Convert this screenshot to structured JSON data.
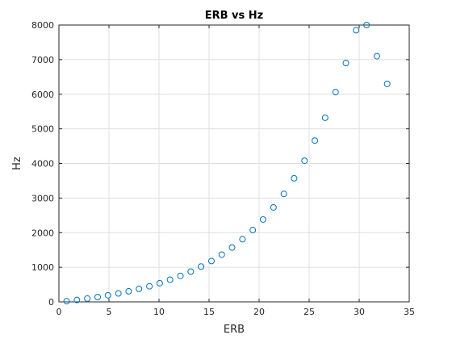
{
  "chart_data": {
    "type": "scatter",
    "title": "ERB vs Hz",
    "xlabel": "ERB",
    "ylabel": "Hz",
    "xlim": [
      0,
      35
    ],
    "ylim": [
      0,
      8000
    ],
    "x_ticks": [
      0,
      5,
      10,
      15,
      20,
      25,
      30,
      35
    ],
    "y_ticks": [
      0,
      1000,
      2000,
      3000,
      4000,
      5000,
      6000,
      7000,
      8000
    ],
    "grid": true,
    "legend": false,
    "marker": "circle-outline",
    "marker_color": "#0072BD",
    "series": [
      {
        "x": [
          0.77,
          1.8,
          2.84,
          3.87,
          4.9,
          5.94,
          6.97,
          8.0,
          9.04,
          10.07,
          11.1,
          12.14,
          13.17,
          14.2,
          15.24,
          16.27,
          17.3,
          18.34,
          19.37,
          20.4,
          21.44,
          22.47,
          23.5,
          24.54,
          25.57,
          26.6,
          27.64,
          28.67,
          29.7,
          30.74,
          31.77,
          32.8
        ],
        "y": [
          20,
          55,
          95,
          140,
          190,
          245,
          305,
          375,
          450,
          540,
          640,
          750,
          875,
          1020,
          1180,
          1365,
          1570,
          1810,
          2075,
          2380,
          2730,
          3120,
          3570,
          4080,
          4660,
          5320,
          6060,
          6900,
          7850,
          8000,
          7100,
          6300
        ]
      }
    ]
  }
}
